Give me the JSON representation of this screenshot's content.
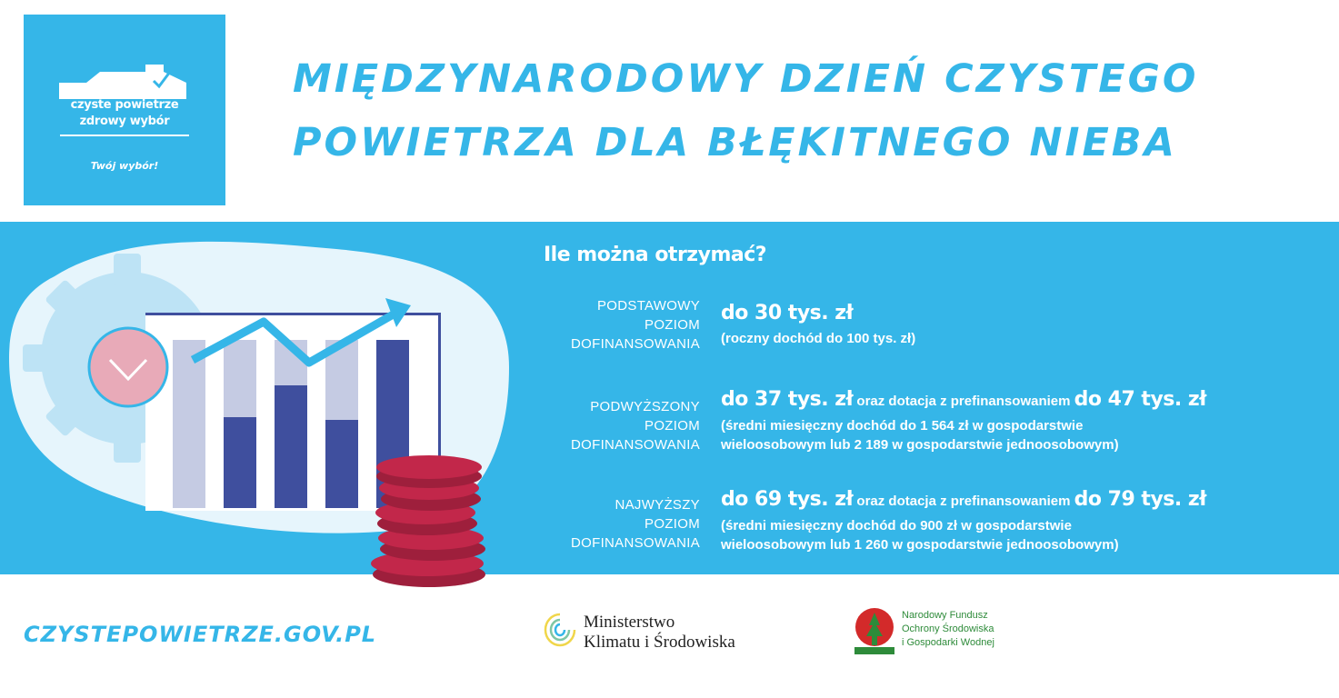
{
  "logo": {
    "line1": "czyste powietrze",
    "line2": "zdrowy wybór",
    "tagline": "Twój wybór!"
  },
  "title": {
    "line1": "MIĘDZYNARODOWY DZIEŃ CZYSTEGO",
    "line2": "POWIETRZA DLA BŁĘKITNEGO NIEBA"
  },
  "section_heading": "Ile można otrzymać?",
  "levels": [
    {
      "label": [
        "PODSTAWOWY",
        "POZIOM",
        "DOFINANSOWANIA"
      ],
      "amount": "do 30 tys. zł",
      "connector": "",
      "amount2": "",
      "note": [
        "(roczny dochód do 100 tys. zł)"
      ]
    },
    {
      "label": [
        "PODWYŻSZONY",
        "POZIOM",
        "DOFINANSOWANIA"
      ],
      "amount": "do 37 tys. zł",
      "connector": " oraz dotacja z prefinansowaniem ",
      "amount2": "do 47 tys. zł",
      "note": [
        "(średni miesięczny dochód do 1 564 zł w gospodarstwie",
        "wieloosobowym lub 2 189 w gospodarstwie jednoosobowym)"
      ]
    },
    {
      "label": [
        "NAJWYŻSZY",
        "POZIOM",
        "DOFINANSOWANIA"
      ],
      "amount": "do 69 tys. zł",
      "connector": " oraz dotacja z prefinansowaniem ",
      "amount2": "do 79 tys. zł",
      "note": [
        "(średni miesięczny dochód do 900 zł w gospodarstwie",
        "wieloosobowym lub 1 260 w gospodarstwie jednoosobowym)"
      ]
    }
  ],
  "footer": {
    "url": "CZYSTEPOWIETRZE.GOV.PL",
    "ministry_line1": "Ministerstwo",
    "ministry_line2": "Klimatu i Środowiska",
    "fund_line1": "Narodowy Fundusz",
    "fund_line2": "Ochrony Środowiska",
    "fund_line3": "i Gospodarki Wodnej"
  },
  "colors": {
    "brand_blue": "#35b6e8",
    "bar_dark": "#3f4f9e",
    "bar_light": "#c5cbe3",
    "coin": "#c2274a",
    "check_circle": "#e8aab8"
  },
  "icons": [
    "house-check-icon",
    "gear-icon",
    "checkmark-icon",
    "trend-arrow-icon",
    "coins-icon",
    "ministry-logo-icon",
    "nfosigw-logo-icon"
  ]
}
